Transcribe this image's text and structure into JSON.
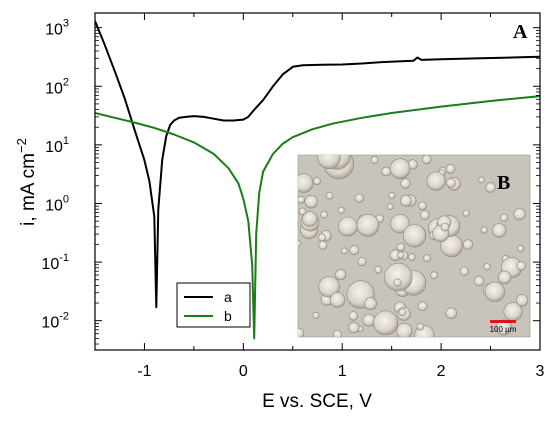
{
  "chart_data": {
    "type": "line",
    "panel_label": "A",
    "inset_label": "B",
    "scale_bar_label": "100 µm",
    "xlabel": "E vs. SCE, V",
    "ylabel_base": "i, mA cm",
    "ylabel_exp": "−2",
    "xlim": [
      -1.5,
      3.0
    ],
    "ylim_log10": [
      -2.5,
      3.25
    ],
    "yscale": "log",
    "x_ticks": [
      {
        "v": -1,
        "label": "-1"
      },
      {
        "v": 0,
        "label": "0"
      },
      {
        "v": 1,
        "label": "1"
      },
      {
        "v": 2,
        "label": "2"
      },
      {
        "v": 3,
        "label": "3"
      }
    ],
    "y_ticks": [
      {
        "e": -2,
        "base": "10",
        "exp": "-2"
      },
      {
        "e": -1,
        "base": "10",
        "exp": "-1"
      },
      {
        "e": 0,
        "base": "10",
        "exp": "0"
      },
      {
        "e": 1,
        "base": "10",
        "exp": "1"
      },
      {
        "e": 2,
        "base": "10",
        "exp": "2"
      },
      {
        "e": 3,
        "base": "10",
        "exp": "3"
      }
    ],
    "legend_position": "lower-left",
    "series": [
      {
        "name": "a",
        "color": "#000000",
        "points": [
          [
            -1.5,
            1300
          ],
          [
            -1.4,
            500
          ],
          [
            -1.3,
            180
          ],
          [
            -1.2,
            62
          ],
          [
            -1.1,
            18
          ],
          [
            -1.0,
            5.5
          ],
          [
            -0.95,
            2.4
          ],
          [
            -0.9,
            0.6
          ],
          [
            -0.88,
            0.017
          ],
          [
            -0.86,
            0.8
          ],
          [
            -0.82,
            5.5
          ],
          [
            -0.78,
            14
          ],
          [
            -0.74,
            22
          ],
          [
            -0.7,
            26
          ],
          [
            -0.65,
            29
          ],
          [
            -0.58,
            30
          ],
          [
            -0.5,
            31
          ],
          [
            -0.4,
            30
          ],
          [
            -0.3,
            28
          ],
          [
            -0.2,
            26
          ],
          [
            -0.1,
            26
          ],
          [
            0.0,
            27
          ],
          [
            0.05,
            30
          ],
          [
            0.1,
            38
          ],
          [
            0.2,
            58
          ],
          [
            0.3,
            100
          ],
          [
            0.4,
            160
          ],
          [
            0.5,
            215
          ],
          [
            0.6,
            228
          ],
          [
            0.8,
            232
          ],
          [
            1.0,
            235
          ],
          [
            1.2,
            245
          ],
          [
            1.4,
            258
          ],
          [
            1.6,
            268
          ],
          [
            1.72,
            272
          ],
          [
            1.76,
            310
          ],
          [
            1.8,
            282
          ],
          [
            2.0,
            290
          ],
          [
            2.4,
            300
          ],
          [
            2.8,
            312
          ],
          [
            3.0,
            318
          ]
        ]
      },
      {
        "name": "b",
        "color": "#1a7d1a",
        "points": [
          [
            -1.5,
            35
          ],
          [
            -1.3,
            29
          ],
          [
            -1.1,
            24
          ],
          [
            -0.9,
            19.5
          ],
          [
            -0.7,
            15
          ],
          [
            -0.5,
            11
          ],
          [
            -0.3,
            7
          ],
          [
            -0.15,
            4
          ],
          [
            -0.05,
            2.2
          ],
          [
            0.0,
            1.2
          ],
          [
            0.05,
            0.5
          ],
          [
            0.09,
            0.09
          ],
          [
            0.11,
            0.005
          ],
          [
            0.13,
            0.3
          ],
          [
            0.16,
            1.5
          ],
          [
            0.2,
            3.5
          ],
          [
            0.3,
            7
          ],
          [
            0.4,
            10.5
          ],
          [
            0.5,
            13.5
          ],
          [
            0.7,
            18.5
          ],
          [
            0.9,
            23
          ],
          [
            1.2,
            29
          ],
          [
            1.5,
            35
          ],
          [
            2.0,
            45
          ],
          [
            2.5,
            56
          ],
          [
            3.0,
            68
          ]
        ]
      }
    ]
  }
}
